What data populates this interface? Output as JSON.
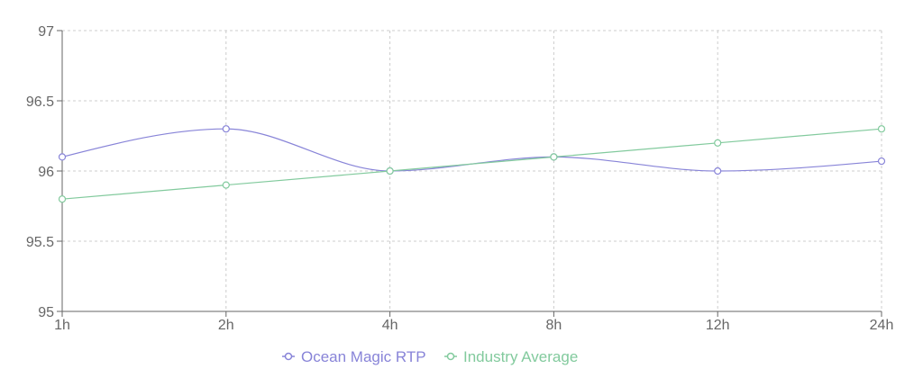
{
  "chart_data": {
    "type": "line",
    "categories": [
      "1h",
      "2h",
      "4h",
      "8h",
      "12h",
      "24h"
    ],
    "ylim": [
      95,
      97
    ],
    "yticks": [
      95,
      95.5,
      96,
      96.5,
      97
    ],
    "ytick_labels": [
      "95",
      "95.5",
      "96",
      "96.5",
      "97"
    ],
    "grid": true,
    "legend_position": "bottom-center",
    "series": [
      {
        "name": "Ocean Magic RTP",
        "color": "#8884d8",
        "values": [
          96.1,
          96.3,
          96.0,
          96.1,
          96.0,
          96.07
        ]
      },
      {
        "name": "Industry Average",
        "color": "#82ca9d",
        "values": [
          95.8,
          95.9,
          96.0,
          96.1,
          96.2,
          96.3
        ]
      }
    ],
    "axis_color": "#666666",
    "grid_color": "#cccccc"
  }
}
